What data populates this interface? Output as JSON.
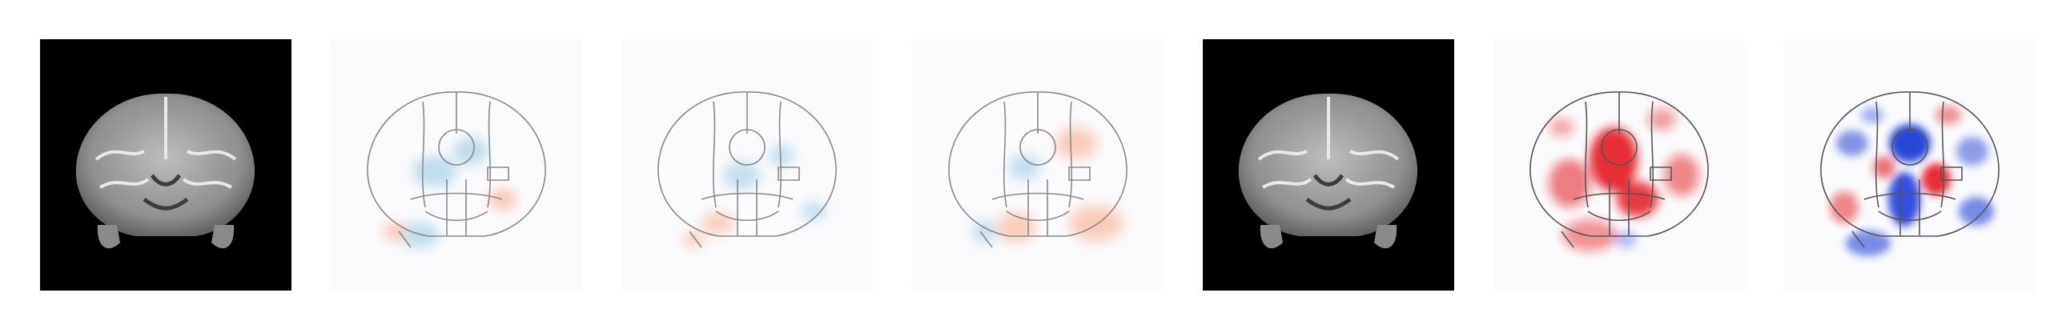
{
  "figure": {
    "panels": [
      {
        "id": "anatomy-1",
        "kind": "anatomical-mri",
        "background": "#000000"
      },
      {
        "id": "map-1",
        "kind": "diverging-heatmap",
        "dominant": "weak-blue",
        "intensity": 0.35
      },
      {
        "id": "map-2",
        "kind": "diverging-heatmap",
        "dominant": "weak-mixed",
        "intensity": 0.3
      },
      {
        "id": "map-3",
        "kind": "diverging-heatmap",
        "dominant": "weak-orange",
        "intensity": 0.4
      },
      {
        "id": "anatomy-2",
        "kind": "anatomical-mri",
        "background": "#000000"
      },
      {
        "id": "map-4",
        "kind": "diverging-heatmap",
        "dominant": "red",
        "intensity": 0.85
      },
      {
        "id": "map-5",
        "kind": "diverging-heatmap",
        "dominant": "blue-red",
        "intensity": 1.0
      }
    ],
    "colors": {
      "positive": "#e41a1c",
      "negative": "#1f3fd6",
      "weak_positive": "#f4a582",
      "weak_negative": "#92c5de",
      "outline": "#8a8a8a",
      "panel_tint": "#fbfbfd"
    }
  }
}
